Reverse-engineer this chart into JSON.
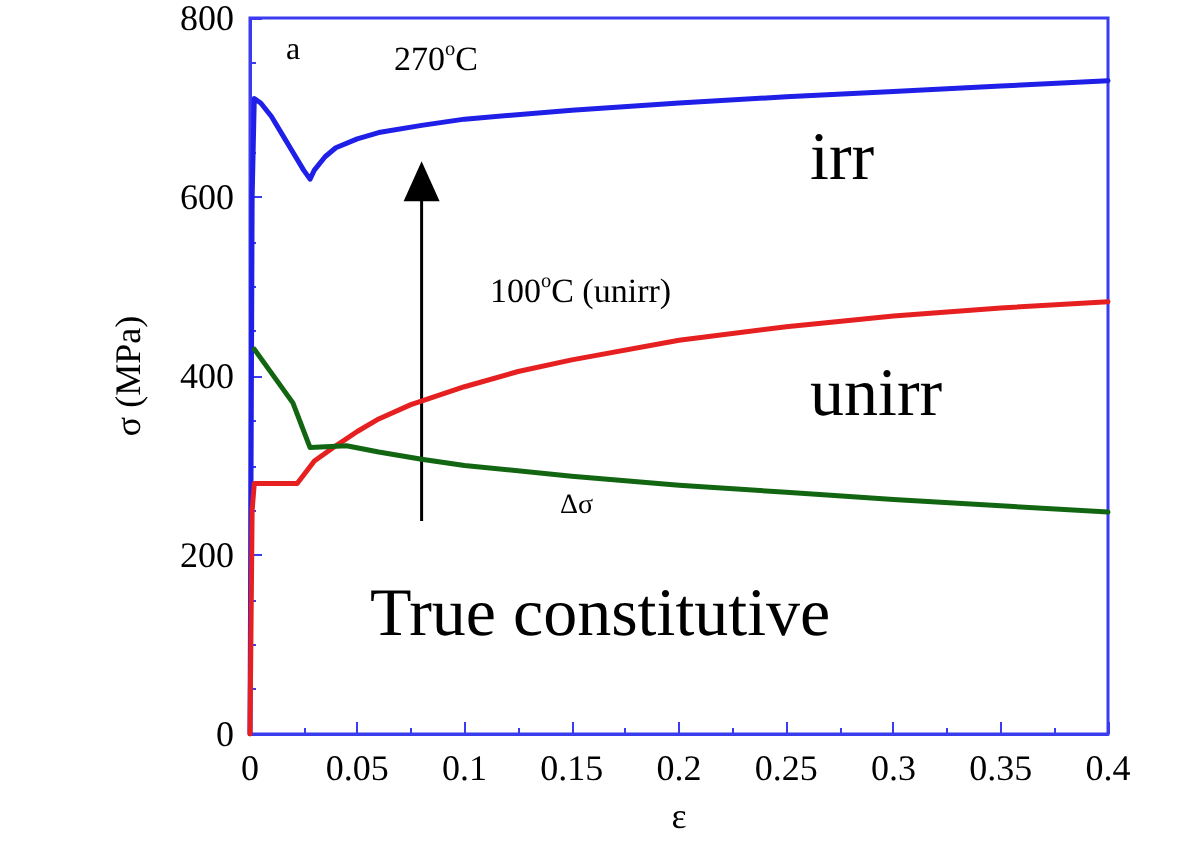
{
  "chart_data": {
    "type": "line",
    "xlabel": "ε",
    "ylabel": "σ (MPa)",
    "xlim": [
      0,
      0.4
    ],
    "xticks": [
      0,
      0.05,
      0.1,
      0.15,
      0.2,
      0.25,
      0.3,
      0.35,
      0.4
    ],
    "ylim": [
      0,
      800
    ],
    "yticks": [
      0,
      200,
      400,
      600,
      800
    ],
    "marker": "none",
    "line_style": "solid",
    "series": [
      {
        "color": "#1f1fe8",
        "x": [
          0,
          0.001,
          0.002,
          0.005,
          0.01,
          0.015,
          0.02,
          0.025,
          0.028,
          0.03,
          0.035,
          0.04,
          0.05,
          0.06,
          0.08,
          0.1,
          0.15,
          0.2,
          0.25,
          0.3,
          0.35,
          0.4
        ],
        "values": [
          0,
          600,
          710,
          705,
          690,
          670,
          650,
          630,
          620,
          630,
          645,
          655,
          665,
          672,
          680,
          687,
          697,
          705,
          712,
          718,
          724,
          730
        ]
      },
      {
        "color": "#e62020",
        "x": [
          0,
          0.001,
          0.002,
          0.022,
          0.03,
          0.04,
          0.05,
          0.06,
          0.075,
          0.1,
          0.125,
          0.15,
          0.2,
          0.25,
          0.3,
          0.35,
          0.4
        ],
        "values": [
          0,
          250,
          280,
          280,
          305,
          322,
          338,
          352,
          368,
          388,
          405,
          418,
          440,
          455,
          467,
          476,
          483
        ]
      },
      {
        "color": "#126612",
        "x": [
          0.002,
          0.02,
          0.028,
          0.045,
          0.06,
          0.08,
          0.1,
          0.15,
          0.2,
          0.25,
          0.3,
          0.35,
          0.4
        ],
        "values": [
          430,
          370,
          320,
          322,
          315,
          307,
          300,
          288,
          278,
          270,
          262,
          255,
          248
        ]
      }
    ],
    "annotations": [
      "a",
      "270$^{o}$C",
      "irr",
      "100$^{o}$C (unirr)",
      "unirr",
      "Δσ",
      "True constitutive"
    ]
  }
}
